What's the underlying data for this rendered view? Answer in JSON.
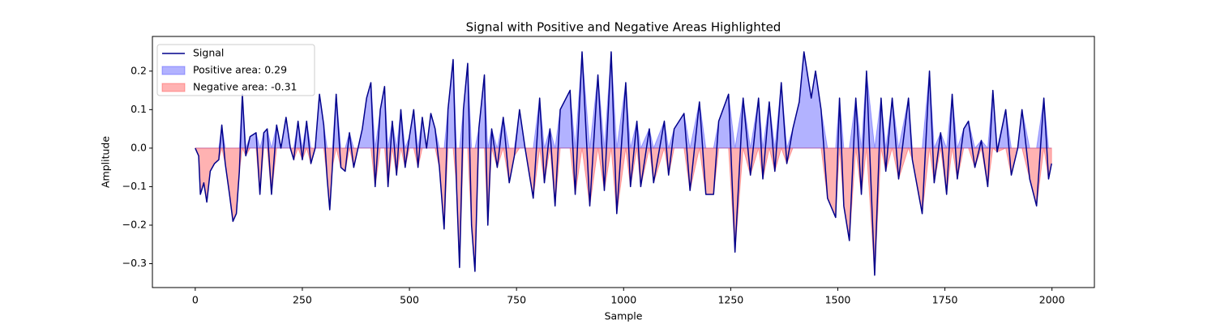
{
  "chart_data": {
    "type": "line",
    "title": "Signal with Positive and Negative Areas Highlighted",
    "x_label": "Sample",
    "y_label": "Amplitude",
    "x": [
      0,
      8,
      12,
      20,
      27,
      35,
      45,
      55,
      62,
      70,
      80,
      88,
      96,
      103,
      110,
      118,
      128,
      142,
      151,
      160,
      168,
      178,
      190,
      200,
      212,
      222,
      230,
      240,
      250,
      260,
      270,
      280,
      290,
      300,
      308,
      314,
      320,
      329,
      340,
      350,
      360,
      370,
      380,
      390,
      400,
      410,
      420,
      432,
      442,
      450,
      460,
      470,
      480,
      490,
      500,
      510,
      520,
      530,
      540,
      550,
      560,
      570,
      581,
      590,
      602,
      610,
      617,
      626,
      636,
      645,
      653,
      662,
      675,
      683,
      692,
      705,
      719,
      733,
      745,
      757,
      770,
      789,
      804,
      815,
      828,
      840,
      852,
      875,
      887,
      903,
      921,
      940,
      955,
      971,
      984,
      1005,
      1016,
      1031,
      1040,
      1060,
      1070,
      1095,
      1105,
      1118,
      1141,
      1155,
      1177,
      1192,
      1210,
      1222,
      1245,
      1260,
      1279,
      1296,
      1315,
      1325,
      1340,
      1353,
      1368,
      1381,
      1395,
      1410,
      1421,
      1438,
      1448,
      1461,
      1476,
      1495,
      1504,
      1514,
      1527,
      1542,
      1555,
      1567,
      1586,
      1601,
      1612,
      1627,
      1642,
      1665,
      1674,
      1697,
      1714,
      1725,
      1740,
      1754,
      1767,
      1779,
      1794,
      1805,
      1820,
      1835,
      1850,
      1862,
      1872,
      1892,
      1905,
      1920,
      1930,
      1948,
      1964,
      1981,
      1992,
      1999
    ],
    "series": [
      {
        "name": "Signal",
        "color": "#00008b",
        "values": [
          0.0,
          -0.02,
          -0.12,
          -0.09,
          -0.14,
          -0.06,
          -0.04,
          -0.03,
          0.06,
          -0.04,
          -0.12,
          -0.19,
          -0.17,
          -0.06,
          0.14,
          -0.02,
          0.03,
          0.04,
          -0.12,
          0.04,
          0.05,
          -0.12,
          0.06,
          0.0,
          0.08,
          0.0,
          -0.03,
          0.07,
          -0.03,
          0.07,
          -0.04,
          0.0,
          0.14,
          0.06,
          -0.08,
          -0.16,
          -0.05,
          0.14,
          -0.05,
          -0.06,
          0.04,
          -0.05,
          0.0,
          0.05,
          0.13,
          0.17,
          -0.1,
          0.1,
          0.16,
          -0.1,
          0.07,
          -0.07,
          0.1,
          -0.05,
          0.03,
          0.1,
          -0.05,
          0.08,
          0.0,
          0.09,
          0.05,
          -0.05,
          -0.21,
          0.1,
          0.23,
          -0.1,
          -0.31,
          0.1,
          0.22,
          -0.2,
          -0.32,
          0.05,
          0.19,
          -0.2,
          0.05,
          -0.05,
          0.08,
          -0.09,
          -0.02,
          0.1,
          0.0,
          -0.13,
          0.13,
          -0.09,
          0.05,
          -0.15,
          0.1,
          0.15,
          -0.12,
          0.25,
          -0.15,
          0.19,
          -0.11,
          0.25,
          -0.17,
          0.17,
          -0.1,
          0.07,
          -0.1,
          0.05,
          -0.09,
          0.07,
          -0.07,
          0.05,
          0.09,
          -0.11,
          0.12,
          -0.12,
          -0.12,
          0.07,
          0.14,
          -0.27,
          0.13,
          -0.07,
          0.13,
          -0.08,
          0.12,
          -0.06,
          0.17,
          -0.04,
          0.05,
          0.12,
          0.25,
          0.13,
          0.2,
          0.1,
          -0.13,
          -0.18,
          0.13,
          -0.15,
          -0.24,
          0.13,
          -0.12,
          0.2,
          -0.33,
          0.13,
          -0.06,
          0.13,
          -0.08,
          0.13,
          -0.03,
          -0.17,
          0.2,
          -0.09,
          0.04,
          -0.12,
          0.14,
          -0.08,
          0.05,
          0.07,
          -0.05,
          0.02,
          -0.1,
          0.15,
          -0.01,
          0.1,
          -0.07,
          0.0,
          0.1,
          -0.08,
          -0.15,
          0.13,
          -0.08,
          -0.04
        ]
      }
    ],
    "fill_positive": {
      "name": "Positive area: 0.29",
      "color": "#0000ff"
    },
    "fill_negative": {
      "name": "Negative area: -0.31",
      "color": "#ff0000"
    },
    "xlim": [
      -100,
      2099
    ],
    "ylim": [
      -0.362,
      0.29
    ],
    "xticks": [
      0,
      250,
      500,
      750,
      1000,
      1250,
      1500,
      1750,
      2000
    ],
    "yticks": [
      {
        "value": -0.3,
        "label": "−0.3"
      },
      {
        "value": -0.2,
        "label": "−0.2"
      },
      {
        "value": -0.1,
        "label": "−0.1"
      },
      {
        "value": 0.0,
        "label": "0.0"
      },
      0.1,
      0.2
    ],
    "legend": "upper left"
  }
}
